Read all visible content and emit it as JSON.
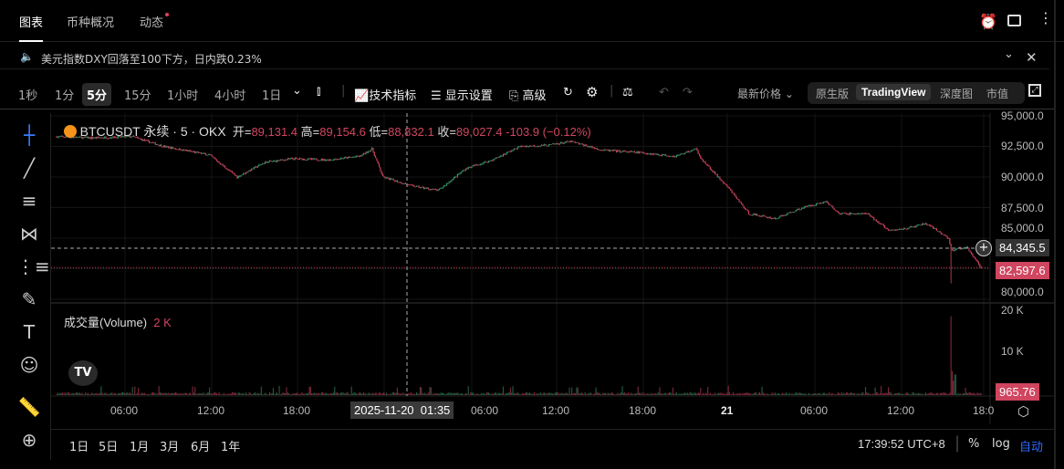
{
  "tabs": [
    {
      "label": "图表",
      "active": true
    },
    {
      "label": "币种概况"
    },
    {
      "label": "动态",
      "badge_dot": true
    }
  ],
  "top_icons": [
    "alert-add-icon",
    "window-icon",
    "more-icon"
  ],
  "notice": {
    "icon": "speaker-icon",
    "text": "美元指数DXY回落至100下方，日内跌0.23%"
  },
  "toolbar": {
    "intervals": [
      "1秒",
      "1分",
      "5分",
      "15分",
      "1小时",
      "4小时",
      "1日"
    ],
    "active_interval": "5分",
    "indicators": "技术指标",
    "display": "显示设置",
    "advanced": "高级",
    "price_mode": "最新价格",
    "views": [
      "原生版",
      "TradingView",
      "深度图",
      "市值"
    ],
    "active_view": "TradingView"
  },
  "legend": {
    "symbol": "BTCUSDT 永续 · 5 · OKX",
    "open_label": "开=",
    "open": "89,131.4",
    "high_label": "高=",
    "high": "89,154.6",
    "low_label": "低=",
    "low": "88,832.1",
    "close_label": "收=",
    "close": "89,027.4",
    "change": "-103.9 (−0.12%)"
  },
  "volume_legend": {
    "label": "成交量(Volume)",
    "value": "2 K"
  },
  "price_axis": [
    "95,000.0",
    "92,500.0",
    "90,000.0",
    "87,500.0",
    "85,000.0",
    "80,000.0"
  ],
  "volume_axis": [
    "20 K",
    "10 K"
  ],
  "crosshair": {
    "price": "84,345.5",
    "time": "2025-11-20  01:35"
  },
  "last_price": "82,597.6",
  "last_volume": "965.76",
  "time_axis": [
    "06:00",
    "12:00",
    "18:00",
    "06:00",
    "12:00",
    "18:00",
    "21",
    "06:00",
    "12:00",
    "18:0"
  ],
  "ranges": [
    "1日",
    "5日",
    "1月",
    "3月",
    "6月",
    "1年"
  ],
  "clock": "17:39:52 UTC+8",
  "scale_opts": {
    "percent": "%",
    "log": "log",
    "auto": "自动"
  },
  "colors": {
    "up": "#3a9a6e",
    "down": "#d0455f",
    "accent": "#2f6bff"
  },
  "chart_data": {
    "type": "candlestick",
    "interval": "5m",
    "price_path": [
      [
        "11-19 01:15",
        93300
      ],
      [
        "11-19 03:40",
        93200
      ],
      [
        "11-19 06:30",
        93300
      ],
      [
        "11-19 08:40",
        92500
      ],
      [
        "11-19 11:50",
        91800
      ],
      [
        "11-19 13:45",
        90000
      ],
      [
        "11-19 15:40",
        91200
      ],
      [
        "11-19 17:35",
        91500
      ],
      [
        "11-19 20:05",
        91400
      ],
      [
        "11-19 22:15",
        91700
      ],
      [
        "11-19 23:05",
        92300
      ],
      [
        "11-19 23:50",
        90000
      ],
      [
        "11-20 01:45",
        89300
      ],
      [
        "11-20 03:40",
        88900
      ],
      [
        "11-20 05:35",
        90700
      ],
      [
        "11-20 07:25",
        91400
      ],
      [
        "11-20 09:20",
        92500
      ],
      [
        "11-20 11:15",
        92600
      ],
      [
        "11-20 12:50",
        92900
      ],
      [
        "11-20 15:00",
        92200
      ],
      [
        "11-20 17:35",
        92000
      ],
      [
        "11-20 20:05",
        91700
      ],
      [
        "11-20 21:30",
        92300
      ],
      [
        "11-20 22:00",
        91300
      ],
      [
        "11-20 23:50",
        89000
      ],
      [
        "11-21 01:10",
        87000
      ],
      [
        "11-21 03:00",
        86600
      ],
      [
        "11-21 04:55",
        87500
      ],
      [
        "11-21 06:30",
        88000
      ],
      [
        "11-21 07:25",
        87000
      ],
      [
        "11-21 09:20",
        87000
      ],
      [
        "11-21 10:55",
        85600
      ],
      [
        "11-21 12:30",
        85900
      ],
      [
        "11-21 13:25",
        86200
      ],
      [
        "11-21 15:00",
        85000
      ],
      [
        "11-21 15:10",
        84000
      ],
      [
        "11-21 16:15",
        84300
      ],
      [
        "11-21 17:15",
        82600
      ]
    ],
    "spike_low": [
      "11-21 15:10",
      81300
    ],
    "volume_spike": [
      "11-21 15:10",
      18000
    ],
    "ylim": [
      80000,
      95000
    ],
    "volume_ylim": [
      0,
      20000
    ]
  }
}
